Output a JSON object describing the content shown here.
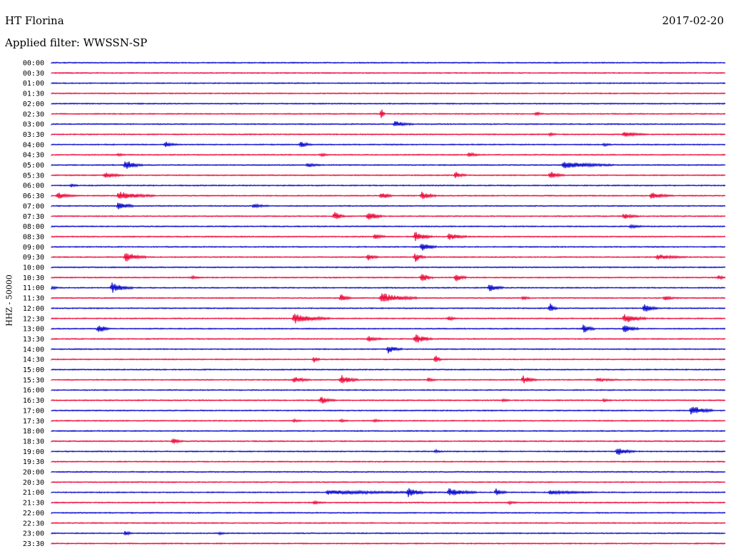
{
  "header": {
    "station": "HT Florina",
    "date": "2017-02-20",
    "filter": "Applied filter: WWSSN-SP"
  },
  "chart_data": {
    "type": "line",
    "title": "HT Florina",
    "subtitle": "Applied filter: WWSSN-SP",
    "ylabel": "HHZ - 50000",
    "colors": [
      "#0000cc",
      "#ee0033"
    ],
    "rows": [
      {
        "label": "00:00",
        "events": []
      },
      {
        "label": "00:30",
        "events": []
      },
      {
        "label": "01:00",
        "events": []
      },
      {
        "label": "01:30",
        "events": []
      },
      {
        "label": "02:00",
        "events": []
      },
      {
        "label": "02:30",
        "events": [
          [
            0.49,
            5,
            1.0
          ],
          [
            0.72,
            10,
            0.4
          ]
        ]
      },
      {
        "label": "03:00",
        "events": [
          [
            0.51,
            25,
            0.6
          ]
        ]
      },
      {
        "label": "03:30",
        "events": [
          [
            0.74,
            10,
            0.3
          ],
          [
            0.85,
            30,
            0.5
          ]
        ]
      },
      {
        "label": "04:00",
        "events": [
          [
            0.17,
            15,
            0.6
          ],
          [
            0.37,
            15,
            0.6
          ],
          [
            0.82,
            10,
            0.3
          ]
        ]
      },
      {
        "label": "04:30",
        "events": [
          [
            0.1,
            10,
            0.3
          ],
          [
            0.4,
            12,
            0.3
          ],
          [
            0.62,
            15,
            0.5
          ]
        ]
      },
      {
        "label": "05:00",
        "events": [
          [
            0.11,
            25,
            1.0
          ],
          [
            0.38,
            20,
            0.4
          ],
          [
            0.76,
            70,
            0.7
          ]
        ]
      },
      {
        "label": "05:30",
        "events": [
          [
            0.08,
            25,
            0.6
          ],
          [
            0.6,
            15,
            0.7
          ],
          [
            0.74,
            20,
            0.8
          ]
        ]
      },
      {
        "label": "06:00",
        "events": [
          [
            0.03,
            10,
            0.3
          ]
        ]
      },
      {
        "label": "06:30",
        "events": [
          [
            0.01,
            25,
            0.6
          ],
          [
            0.1,
            50,
            0.8
          ],
          [
            0.49,
            15,
            0.8
          ],
          [
            0.55,
            20,
            0.8
          ],
          [
            0.89,
            30,
            0.7
          ]
        ]
      },
      {
        "label": "07:00",
        "events": [
          [
            0.1,
            20,
            1.0
          ],
          [
            0.3,
            20,
            0.4
          ]
        ]
      },
      {
        "label": "07:30",
        "events": [
          [
            0.42,
            15,
            1.0
          ],
          [
            0.47,
            20,
            1.0
          ],
          [
            0.85,
            20,
            0.6
          ]
        ]
      },
      {
        "label": "08:00",
        "events": [
          [
            0.86,
            20,
            0.3
          ]
        ]
      },
      {
        "label": "08:30",
        "events": [
          [
            0.48,
            15,
            0.6
          ],
          [
            0.54,
            25,
            1.0
          ],
          [
            0.59,
            25,
            0.8
          ]
        ]
      },
      {
        "label": "09:00",
        "events": [
          [
            0.55,
            20,
            1.0
          ]
        ]
      },
      {
        "label": "09:30",
        "events": [
          [
            0.11,
            30,
            1.0
          ],
          [
            0.47,
            15,
            0.7
          ],
          [
            0.54,
            15,
            1.0
          ],
          [
            0.9,
            40,
            0.5
          ]
        ]
      },
      {
        "label": "10:00",
        "events": []
      },
      {
        "label": "10:30",
        "events": [
          [
            0.21,
            10,
            0.3
          ],
          [
            0.55,
            15,
            1.0
          ],
          [
            0.6,
            15,
            1.0
          ],
          [
            0.99,
            10,
            0.4
          ]
        ]
      },
      {
        "label": "11:00",
        "events": [
          [
            0.0,
            10,
            0.4
          ],
          [
            0.09,
            30,
            1.0
          ],
          [
            0.65,
            20,
            0.8
          ]
        ]
      },
      {
        "label": "11:30",
        "events": [
          [
            0.43,
            15,
            0.8
          ],
          [
            0.49,
            50,
            1.0
          ],
          [
            0.7,
            10,
            0.5
          ],
          [
            0.91,
            20,
            0.4
          ]
        ]
      },
      {
        "label": "12:00",
        "events": [
          [
            0.74,
            10,
            1.0
          ],
          [
            0.88,
            20,
            1.0
          ]
        ]
      },
      {
        "label": "12:30",
        "events": [
          [
            0.36,
            50,
            1.0
          ],
          [
            0.59,
            10,
            0.5
          ],
          [
            0.85,
            30,
            1.0
          ]
        ]
      },
      {
        "label": "13:00",
        "events": [
          [
            0.07,
            15,
            1.0
          ],
          [
            0.79,
            15,
            1.0
          ],
          [
            0.85,
            20,
            1.0
          ]
        ]
      },
      {
        "label": "13:30",
        "events": [
          [
            0.47,
            20,
            0.6
          ],
          [
            0.54,
            25,
            1.0
          ]
        ]
      },
      {
        "label": "14:00",
        "events": [
          [
            0.5,
            20,
            0.8
          ]
        ]
      },
      {
        "label": "14:30",
        "events": [
          [
            0.39,
            8,
            0.6
          ],
          [
            0.57,
            8,
            1.0
          ]
        ]
      },
      {
        "label": "15:00",
        "events": []
      },
      {
        "label": "15:30",
        "events": [
          [
            0.36,
            25,
            0.6
          ],
          [
            0.43,
            25,
            1.0
          ],
          [
            0.56,
            10,
            0.4
          ],
          [
            0.7,
            20,
            0.8
          ],
          [
            0.81,
            30,
            0.3
          ]
        ]
      },
      {
        "label": "16:00",
        "events": []
      },
      {
        "label": "16:30",
        "events": [
          [
            0.4,
            20,
            0.8
          ],
          [
            0.67,
            10,
            0.3
          ],
          [
            0.82,
            10,
            0.3
          ]
        ]
      },
      {
        "label": "17:00",
        "events": [
          [
            0.95,
            30,
            1.0
          ]
        ]
      },
      {
        "label": "17:30",
        "events": [
          [
            0.36,
            10,
            0.3
          ],
          [
            0.43,
            10,
            0.3
          ],
          [
            0.48,
            10,
            0.3
          ]
        ]
      },
      {
        "label": "18:00",
        "events": []
      },
      {
        "label": "18:30",
        "events": [
          [
            0.18,
            15,
            0.6
          ]
        ]
      },
      {
        "label": "19:00",
        "events": [
          [
            0.57,
            10,
            0.3
          ],
          [
            0.84,
            25,
            0.8
          ]
        ]
      },
      {
        "label": "19:30",
        "events": []
      },
      {
        "label": "20:00",
        "events": []
      },
      {
        "label": "20:30",
        "events": []
      },
      {
        "label": "21:00",
        "events": [
          [
            0.41,
            150,
            0.4
          ],
          [
            0.53,
            20,
            1.0
          ],
          [
            0.59,
            40,
            0.8
          ],
          [
            0.66,
            15,
            0.8
          ],
          [
            0.74,
            60,
            0.4
          ]
        ]
      },
      {
        "label": "21:30",
        "events": [
          [
            0.39,
            15,
            0.3
          ],
          [
            0.68,
            10,
            0.3
          ]
        ]
      },
      {
        "label": "22:00",
        "events": []
      },
      {
        "label": "22:30",
        "events": []
      },
      {
        "label": "23:00",
        "events": [
          [
            0.11,
            10,
            0.5
          ],
          [
            0.25,
            8,
            0.3
          ]
        ]
      },
      {
        "label": "23:30",
        "events": []
      }
    ]
  }
}
